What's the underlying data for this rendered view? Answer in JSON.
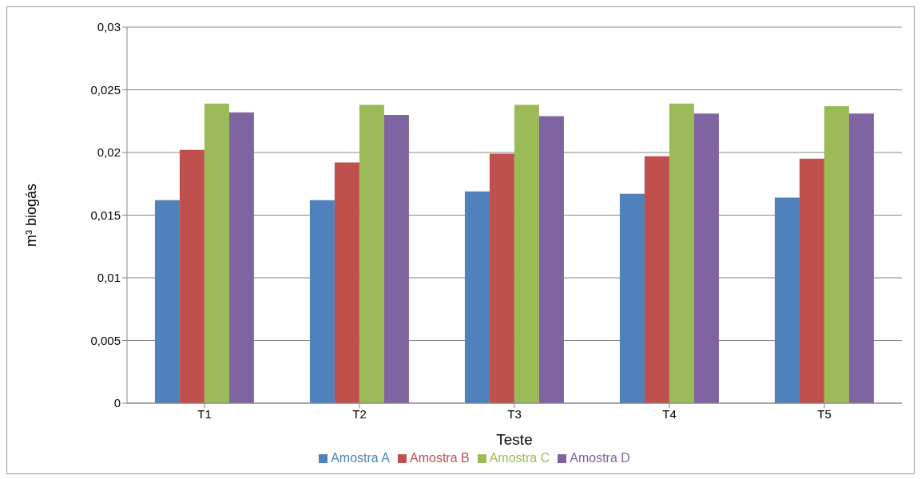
{
  "chart_data": {
    "type": "bar",
    "xlabel": "Teste",
    "ylabel": "m³ biogás",
    "categories": [
      "T1",
      "T2",
      "T3",
      "T4",
      "T5"
    ],
    "series": [
      {
        "name": "Amostra A",
        "color": "#4f81bd",
        "values": [
          0.0162,
          0.0162,
          0.0169,
          0.0167,
          0.0164
        ]
      },
      {
        "name": "Amostra B",
        "color": "#c0504d",
        "values": [
          0.0202,
          0.0192,
          0.0199,
          0.0197,
          0.0195
        ]
      },
      {
        "name": "Amostra C",
        "color": "#9bbb59",
        "values": [
          0.0239,
          0.0238,
          0.0238,
          0.0239,
          0.0237
        ]
      },
      {
        "name": "Amostra D",
        "color": "#8064a2",
        "values": [
          0.0232,
          0.023,
          0.0229,
          0.0231,
          0.0231
        ]
      }
    ],
    "ylim": [
      0,
      0.03
    ],
    "yticks": [
      {
        "value": 0,
        "label": "0"
      },
      {
        "value": 0.005,
        "label": "0,005"
      },
      {
        "value": 0.01,
        "label": "0,01"
      },
      {
        "value": 0.015,
        "label": "0,015"
      },
      {
        "value": 0.02,
        "label": "0,02"
      },
      {
        "value": 0.025,
        "label": "0,025"
      },
      {
        "value": 0.03,
        "label": "0,03"
      }
    ],
    "grid": "y",
    "legend": "bottom"
  }
}
